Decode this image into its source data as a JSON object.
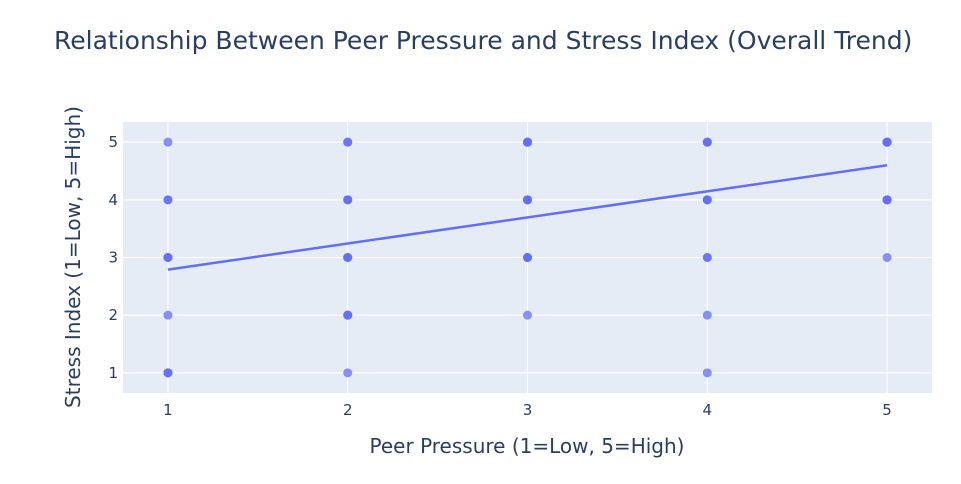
{
  "chart_data": {
    "type": "scatter",
    "title": "Relationship Between Peer Pressure and Stress Index (Overall Trend)",
    "xlabel": "Peer Pressure (1=Low, 5=High)",
    "ylabel": "Stress Index (1=Low, 5=High)",
    "xlim": [
      0.75,
      5.25
    ],
    "ylim": [
      0.65,
      5.35
    ],
    "x_ticks": [
      1,
      2,
      3,
      4,
      5
    ],
    "y_ticks": [
      1,
      2,
      3,
      4,
      5
    ],
    "grid": true,
    "legend": "none",
    "colors": {
      "plot_background": "#e5ecf6",
      "grid": "#ffffff",
      "marker": "#636efa",
      "trendline": "#636efa",
      "text": "#2a3f5f"
    },
    "points": [
      {
        "x": 1,
        "y": 5
      },
      {
        "x": 1,
        "y": 4
      },
      {
        "x": 1,
        "y": 4
      },
      {
        "x": 1,
        "y": 3
      },
      {
        "x": 1,
        "y": 3
      },
      {
        "x": 1,
        "y": 3
      },
      {
        "x": 1,
        "y": 2
      },
      {
        "x": 1,
        "y": 1
      },
      {
        "x": 1,
        "y": 1
      },
      {
        "x": 1,
        "y": 1
      },
      {
        "x": 2,
        "y": 5
      },
      {
        "x": 2,
        "y": 5
      },
      {
        "x": 2,
        "y": 4
      },
      {
        "x": 2,
        "y": 4
      },
      {
        "x": 2,
        "y": 4
      },
      {
        "x": 2,
        "y": 3
      },
      {
        "x": 2,
        "y": 3
      },
      {
        "x": 2,
        "y": 3
      },
      {
        "x": 2,
        "y": 2
      },
      {
        "x": 2,
        "y": 2
      },
      {
        "x": 2,
        "y": 2
      },
      {
        "x": 2,
        "y": 1
      },
      {
        "x": 3,
        "y": 5
      },
      {
        "x": 3,
        "y": 5
      },
      {
        "x": 3,
        "y": 5
      },
      {
        "x": 3,
        "y": 5
      },
      {
        "x": 3,
        "y": 4
      },
      {
        "x": 3,
        "y": 4
      },
      {
        "x": 3,
        "y": 4
      },
      {
        "x": 3,
        "y": 4
      },
      {
        "x": 3,
        "y": 3
      },
      {
        "x": 3,
        "y": 3
      },
      {
        "x": 3,
        "y": 3
      },
      {
        "x": 3,
        "y": 2
      },
      {
        "x": 4,
        "y": 5
      },
      {
        "x": 4,
        "y": 5
      },
      {
        "x": 4,
        "y": 5
      },
      {
        "x": 4,
        "y": 4
      },
      {
        "x": 4,
        "y": 4
      },
      {
        "x": 4,
        "y": 4
      },
      {
        "x": 4,
        "y": 3
      },
      {
        "x": 4,
        "y": 3
      },
      {
        "x": 4,
        "y": 2
      },
      {
        "x": 4,
        "y": 1
      },
      {
        "x": 5,
        "y": 5
      },
      {
        "x": 5,
        "y": 5
      },
      {
        "x": 5,
        "y": 5
      },
      {
        "x": 5,
        "y": 5
      },
      {
        "x": 5,
        "y": 4
      },
      {
        "x": 5,
        "y": 4
      },
      {
        "x": 5,
        "y": 4
      },
      {
        "x": 5,
        "y": 3
      }
    ],
    "trendline": {
      "x": [
        1,
        5
      ],
      "y": [
        2.79,
        4.6
      ]
    }
  }
}
